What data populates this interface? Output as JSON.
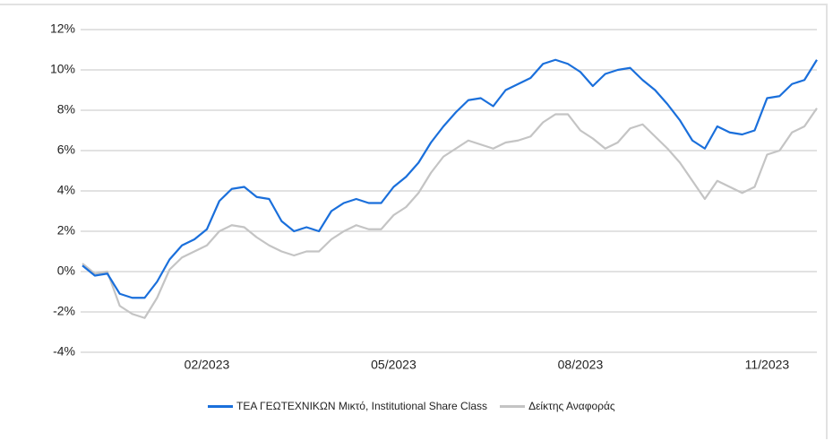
{
  "chart_data": {
    "type": "line",
    "categories": [
      null,
      null,
      null,
      null,
      null,
      null,
      null,
      null,
      null,
      null,
      "02/2023",
      null,
      null,
      null,
      null,
      null,
      null,
      null,
      null,
      null,
      null,
      null,
      null,
      null,
      null,
      "05/2023",
      null,
      null,
      null,
      null,
      null,
      null,
      null,
      null,
      null,
      null,
      null,
      null,
      null,
      null,
      "08/2023",
      null,
      null,
      null,
      null,
      null,
      null,
      null,
      null,
      null,
      null,
      null,
      null,
      null,
      null,
      "11/2023",
      null,
      null,
      null,
      null
    ],
    "series": [
      {
        "name": "ΤΕΑ ΓΕΩΤΕΧΝΙΚΩΝ Μικτό, Institutional Share Class",
        "color": "#1a6fdb",
        "values": [
          0.3,
          -0.2,
          -0.1,
          -1.1,
          -1.3,
          -1.3,
          -0.5,
          0.6,
          1.3,
          1.6,
          2.1,
          3.5,
          4.1,
          4.2,
          3.7,
          3.6,
          2.5,
          2.0,
          2.2,
          2.0,
          3.0,
          3.4,
          3.6,
          3.4,
          3.4,
          4.2,
          4.7,
          5.4,
          6.4,
          7.2,
          7.9,
          8.5,
          8.6,
          8.2,
          9.0,
          9.3,
          9.6,
          10.3,
          10.5,
          10.3,
          9.9,
          9.2,
          9.8,
          10.0,
          10.1,
          9.5,
          9.0,
          8.3,
          7.5,
          6.5,
          6.1,
          7.2,
          6.9,
          6.8,
          7.0,
          8.6,
          8.7,
          9.3,
          9.5,
          10.5
        ]
      },
      {
        "name": "Δείκτης Αναφοράς",
        "color": "#c4c4c4",
        "values": [
          0.4,
          -0.1,
          0,
          -1.7,
          -2.1,
          -2.3,
          -1.3,
          0.1,
          0.7,
          1.0,
          1.3,
          2.0,
          2.3,
          2.2,
          1.7,
          1.3,
          1.0,
          0.8,
          1.0,
          1.0,
          1.6,
          2.0,
          2.3,
          2.1,
          2.1,
          2.8,
          3.2,
          3.9,
          4.9,
          5.7,
          6.1,
          6.5,
          6.3,
          6.1,
          6.4,
          6.5,
          6.7,
          7.4,
          7.8,
          7.8,
          7.0,
          6.6,
          6.1,
          6.4,
          7.1,
          7.3,
          6.7,
          6.1,
          5.4,
          4.5,
          3.6,
          4.5,
          4.2,
          3.9,
          4.2,
          5.8,
          6.0,
          6.9,
          7.2,
          8.1
        ]
      }
    ],
    "ylim": [
      -4,
      12
    ],
    "yticks": [
      {
        "value": -4,
        "label": "-4%"
      },
      {
        "value": -2,
        "label": "-2%"
      },
      {
        "value": 0,
        "label": "0%"
      },
      {
        "value": 2,
        "label": "2%"
      },
      {
        "value": 4,
        "label": "4%"
      },
      {
        "value": 6,
        "label": "6%"
      },
      {
        "value": 8,
        "label": "8%"
      },
      {
        "value": 10,
        "label": "10%"
      },
      {
        "value": 12,
        "label": "12%"
      }
    ],
    "grid": true
  }
}
